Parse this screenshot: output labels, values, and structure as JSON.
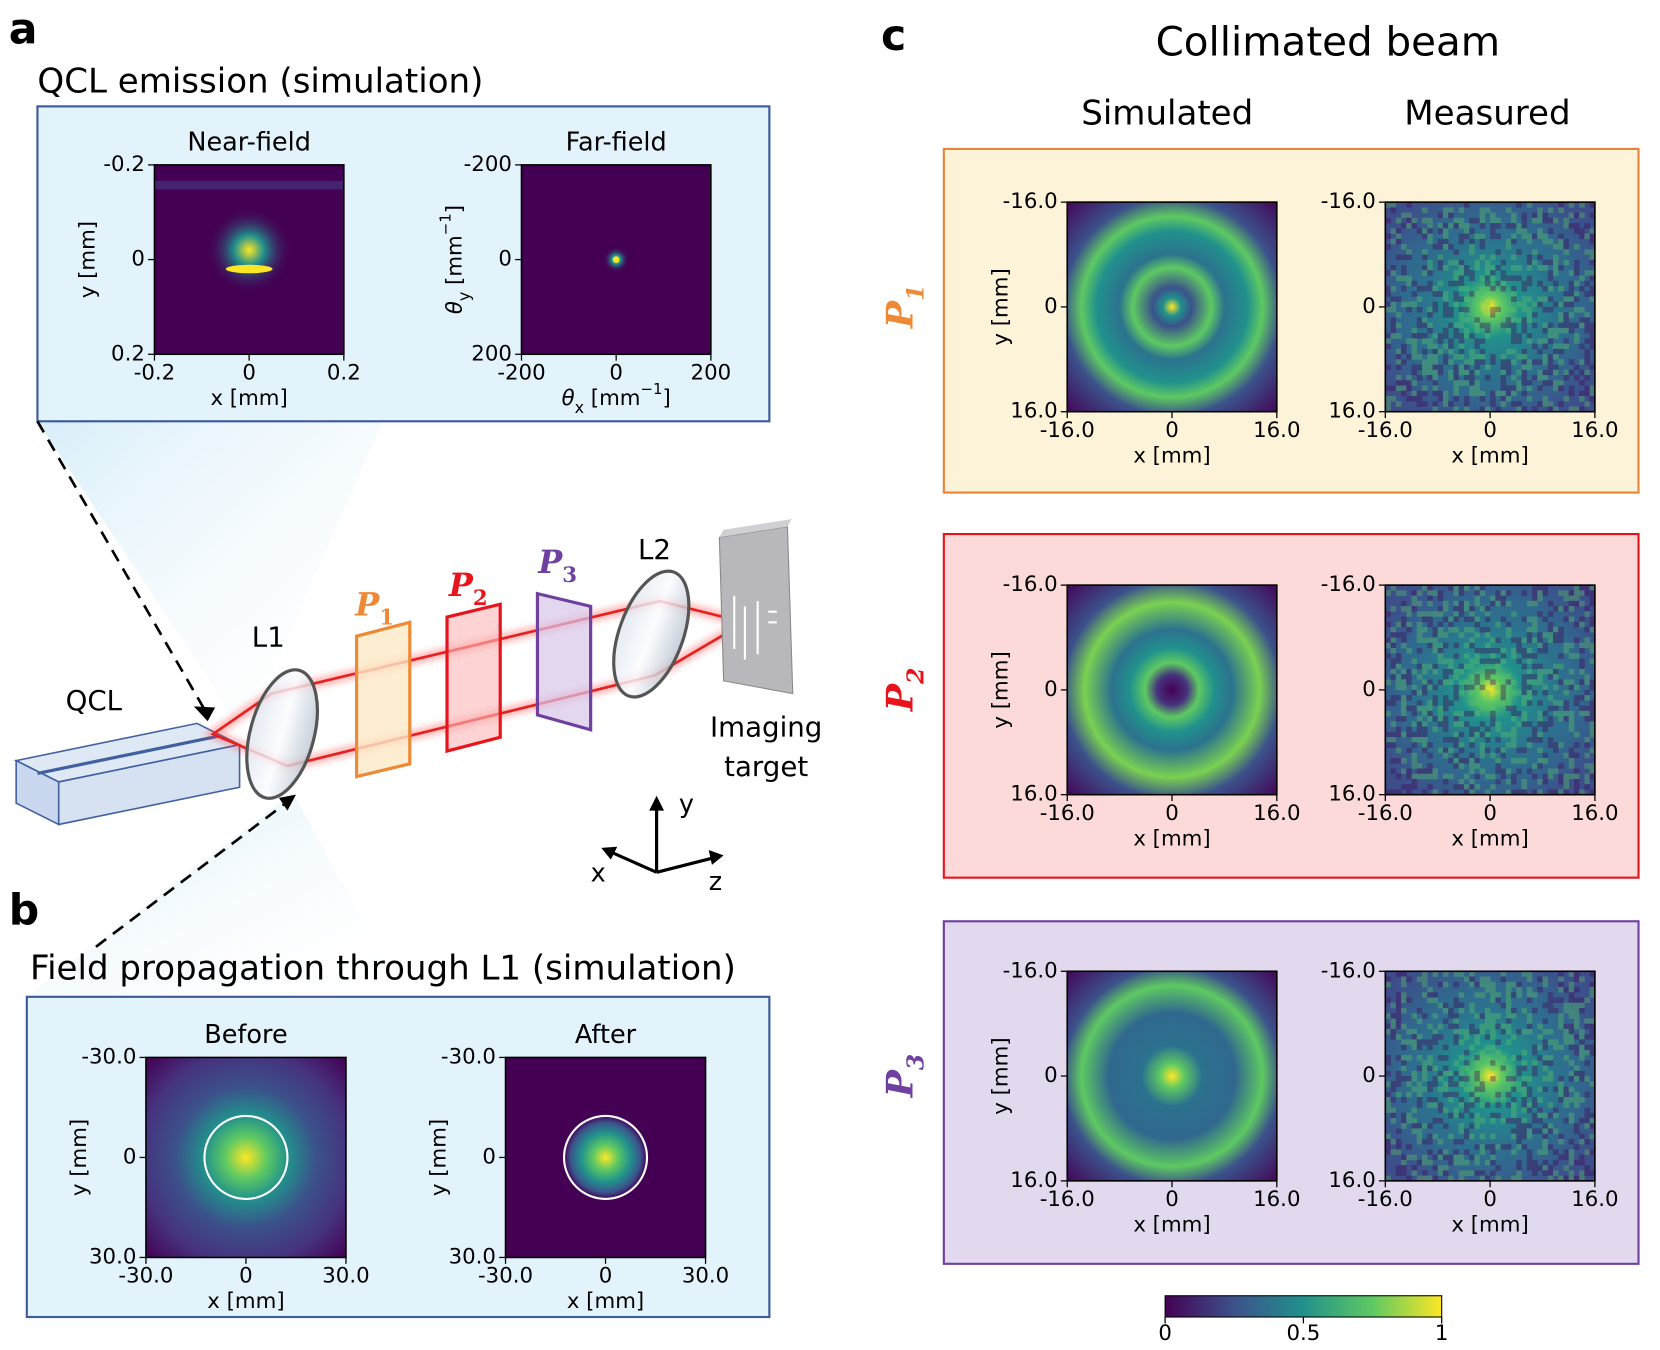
{
  "panel_a": {
    "label": "a",
    "title": "QCL emission  (simulation)",
    "plots": [
      {
        "title": "Near-field",
        "xlabel": "x [mm]",
        "ylabel": "y [mm]",
        "xticks": [
          "-0.2",
          "0",
          "0.2"
        ],
        "yticks": [
          "-0.2",
          "0",
          "0.2"
        ]
      },
      {
        "title": "Far-field",
        "xlabel": [
          "θ",
          "x",
          " [mm",
          "−1",
          "]"
        ],
        "ylabel": [
          "θ",
          "y",
          " [mm",
          "−1",
          "]"
        ],
        "xticks": [
          "-200",
          "0",
          "200"
        ],
        "yticks": [
          "-200",
          "0",
          "200"
        ]
      }
    ]
  },
  "setup": {
    "qcl": "QCL",
    "l1": "L1",
    "l2": "L2",
    "p1": [
      "P",
      "1"
    ],
    "p2": [
      "P",
      "2"
    ],
    "p3": [
      "P",
      "3"
    ],
    "target": [
      "Imaging",
      "target"
    ],
    "axes": {
      "x": "x",
      "y": "y",
      "z": "z"
    }
  },
  "panel_b": {
    "label": "b",
    "title": "Field propagation through L1 (simulation)",
    "plots": [
      {
        "title": "Before",
        "xlabel": "x [mm]",
        "ylabel": "y [mm]",
        "xticks": [
          "-30.0",
          "0",
          "30.0"
        ],
        "yticks": [
          "-30.0",
          "0",
          "30.0"
        ]
      },
      {
        "title": "After",
        "xlabel": "x [mm]",
        "ylabel": "y [mm]",
        "xticks": [
          "-30.0",
          "0",
          "30.0"
        ],
        "yticks": [
          "-30.0",
          "0",
          "30.0"
        ]
      }
    ]
  },
  "panel_c": {
    "label": "c",
    "title": "Collimated beam",
    "columns": [
      "Simulated",
      "Measured"
    ],
    "rows": [
      {
        "label": [
          "P",
          "1"
        ],
        "plots": [
          {
            "xlabel": "x [mm]",
            "ylabel": "y [mm]",
            "xticks": [
              "-16.0",
              "0",
              "16.0"
            ],
            "yticks": [
              "-16.0",
              "0",
              "16.0"
            ]
          },
          {
            "xlabel": "x [mm]",
            "xticks": [
              "-16.0",
              "0",
              "16.0"
            ],
            "yticks": [
              "-16.0",
              "0",
              "16.0"
            ]
          }
        ]
      },
      {
        "label": [
          "P",
          "2"
        ],
        "plots": [
          {
            "xlabel": "x [mm]",
            "ylabel": "y [mm]",
            "xticks": [
              "-16.0",
              "0",
              "16.0"
            ],
            "yticks": [
              "-16.0",
              "0",
              "16.0"
            ]
          },
          {
            "xlabel": "x [mm]",
            "xticks": [
              "-16.0",
              "0",
              "16.0"
            ],
            "yticks": [
              "-16.0",
              "0",
              "16.0"
            ]
          }
        ]
      },
      {
        "label": [
          "P",
          "3"
        ],
        "plots": [
          {
            "xlabel": "x [mm]",
            "ylabel": "y [mm]",
            "xticks": [
              "-16.0",
              "0",
              "16.0"
            ],
            "yticks": [
              "-16.0",
              "0",
              "16.0"
            ]
          },
          {
            "xlabel": "x [mm]",
            "xticks": [
              "-16.0",
              "0",
              "16.0"
            ],
            "yticks": [
              "-16.0",
              "0",
              "16.0"
            ]
          }
        ]
      }
    ],
    "colorbar": {
      "ticks": [
        "0",
        "0.5",
        "1"
      ]
    }
  }
}
